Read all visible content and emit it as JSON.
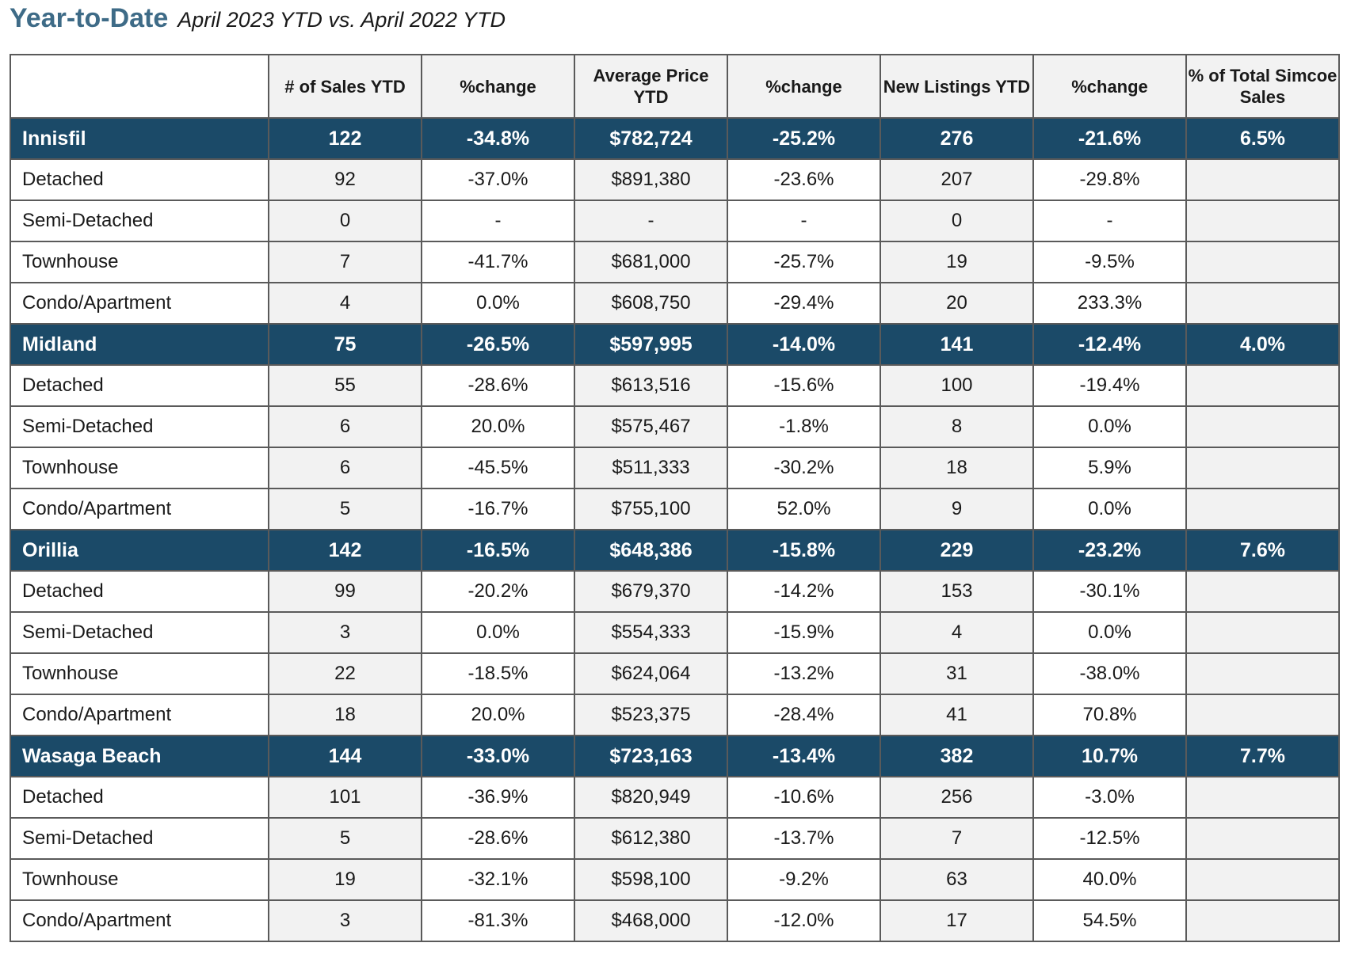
{
  "heading": {
    "title": "Year-to-Date",
    "subtitle": "April 2023 YTD vs. April 2022 YTD"
  },
  "table": {
    "columns": [
      "",
      "# of Sales YTD",
      "%change",
      "Average Price YTD",
      "%change",
      "New Listings YTD",
      "%change",
      "% of Total Simcoe Sales"
    ],
    "groups": [
      {
        "name": "Innisfil",
        "totals": [
          "122",
          "-34.8%",
          "$782,724",
          "-25.2%",
          "276",
          "-21.6%",
          "6.5%"
        ],
        "rows": [
          {
            "type": "Detached",
            "values": [
              "92",
              "-37.0%",
              "$891,380",
              "-23.6%",
              "207",
              "-29.8%",
              ""
            ]
          },
          {
            "type": "Semi-Detached",
            "values": [
              "0",
              "-",
              "-",
              "-",
              "0",
              "-",
              ""
            ]
          },
          {
            "type": "Townhouse",
            "values": [
              "7",
              "-41.7%",
              "$681,000",
              "-25.7%",
              "19",
              "-9.5%",
              ""
            ]
          },
          {
            "type": "Condo/Apartment",
            "values": [
              "4",
              "0.0%",
              "$608,750",
              "-29.4%",
              "20",
              "233.3%",
              ""
            ]
          }
        ]
      },
      {
        "name": "Midland",
        "totals": [
          "75",
          "-26.5%",
          "$597,995",
          "-14.0%",
          "141",
          "-12.4%",
          "4.0%"
        ],
        "rows": [
          {
            "type": "Detached",
            "values": [
              "55",
              "-28.6%",
              "$613,516",
              "-15.6%",
              "100",
              "-19.4%",
              ""
            ]
          },
          {
            "type": "Semi-Detached",
            "values": [
              "6",
              "20.0%",
              "$575,467",
              "-1.8%",
              "8",
              "0.0%",
              ""
            ]
          },
          {
            "type": "Townhouse",
            "values": [
              "6",
              "-45.5%",
              "$511,333",
              "-30.2%",
              "18",
              "5.9%",
              ""
            ]
          },
          {
            "type": "Condo/Apartment",
            "values": [
              "5",
              "-16.7%",
              "$755,100",
              "52.0%",
              "9",
              "0.0%",
              ""
            ]
          }
        ]
      },
      {
        "name": "Orillia",
        "totals": [
          "142",
          "-16.5%",
          "$648,386",
          "-15.8%",
          "229",
          "-23.2%",
          "7.6%"
        ],
        "rows": [
          {
            "type": "Detached",
            "values": [
              "99",
              "-20.2%",
              "$679,370",
              "-14.2%",
              "153",
              "-30.1%",
              ""
            ]
          },
          {
            "type": "Semi-Detached",
            "values": [
              "3",
              "0.0%",
              "$554,333",
              "-15.9%",
              "4",
              "0.0%",
              ""
            ]
          },
          {
            "type": "Townhouse",
            "values": [
              "22",
              "-18.5%",
              "$624,064",
              "-13.2%",
              "31",
              "-38.0%",
              ""
            ]
          },
          {
            "type": "Condo/Apartment",
            "values": [
              "18",
              "20.0%",
              "$523,375",
              "-28.4%",
              "41",
              "70.8%",
              ""
            ]
          }
        ]
      },
      {
        "name": "Wasaga Beach",
        "totals": [
          "144",
          "-33.0%",
          "$723,163",
          "-13.4%",
          "382",
          "10.7%",
          "7.7%"
        ],
        "rows": [
          {
            "type": "Detached",
            "values": [
              "101",
              "-36.9%",
              "$820,949",
              "-10.6%",
              "256",
              "-3.0%",
              ""
            ]
          },
          {
            "type": "Semi-Detached",
            "values": [
              "5",
              "-28.6%",
              "$612,380",
              "-13.7%",
              "7",
              "-12.5%",
              ""
            ]
          },
          {
            "type": "Townhouse",
            "values": [
              "19",
              "-32.1%",
              "$598,100",
              "-9.2%",
              "63",
              "40.0%",
              ""
            ]
          },
          {
            "type": "Condo/Apartment",
            "values": [
              "3",
              "-81.3%",
              "$468,000",
              "-12.0%",
              "17",
              "54.5%",
              ""
            ]
          }
        ]
      }
    ]
  }
}
